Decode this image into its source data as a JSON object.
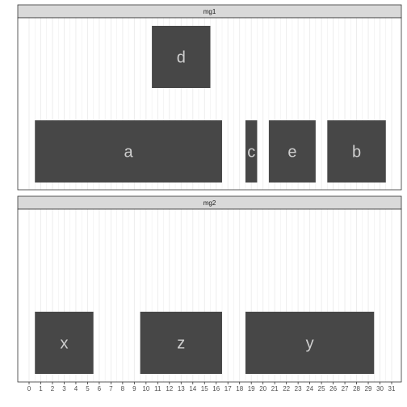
{
  "chart_data": {
    "type": "bar",
    "style": {
      "bar_fill": "#474747",
      "label_color": "#cfcfcf",
      "strip_fill": "#d9d9d9",
      "strip_border": "#333333",
      "panel_border": "#333333",
      "grid_color": "#ebebeb",
      "grid": true
    },
    "xlim": [
      0,
      31
    ],
    "x_ticks": [
      "0",
      "1",
      "2",
      "3",
      "4",
      "5",
      "6",
      "7",
      "8",
      "9",
      "10",
      "11",
      "12",
      "13",
      "14",
      "15",
      "16",
      "17",
      "18",
      "19",
      "20",
      "21",
      "22",
      "23",
      "24",
      "25",
      "26",
      "27",
      "28",
      "29",
      "30",
      "31"
    ],
    "panels": [
      {
        "strip": "mg1",
        "rows": 2,
        "bars": [
          {
            "label": "d",
            "xmin": 10.5,
            "xmax": 15.5,
            "row": 2
          },
          {
            "label": "a",
            "xmin": 0.5,
            "xmax": 16.5,
            "row": 1
          },
          {
            "label": "c",
            "xmin": 18.5,
            "xmax": 19.5,
            "row": 1
          },
          {
            "label": "e",
            "xmin": 20.5,
            "xmax": 24.5,
            "row": 1
          },
          {
            "label": "b",
            "xmin": 25.5,
            "xmax": 30.5,
            "row": 1
          }
        ]
      },
      {
        "strip": "mg2",
        "rows": 2,
        "bars": [
          {
            "label": "x",
            "xmin": 0.5,
            "xmax": 5.5,
            "row": 1
          },
          {
            "label": "z",
            "xmin": 9.5,
            "xmax": 16.5,
            "row": 1
          },
          {
            "label": "y",
            "xmin": 18.5,
            "xmax": 29.5,
            "row": 1
          }
        ]
      }
    ]
  }
}
